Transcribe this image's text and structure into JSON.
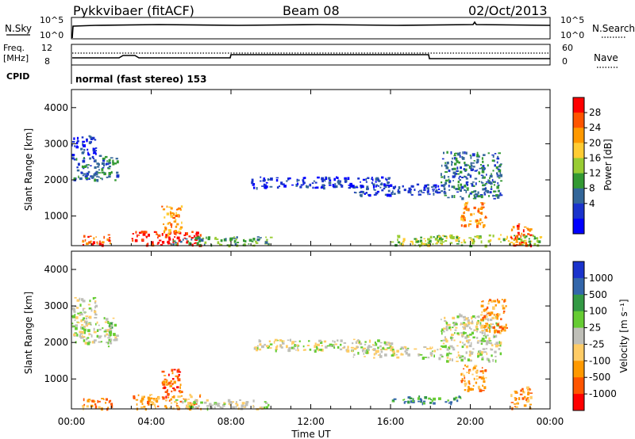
{
  "header": {
    "station": "Pykkvibaer (fitACF)",
    "beam": "Beam 08",
    "date": "02/Oct/2013"
  },
  "params_panel": {
    "nsky_label": "N.Sky",
    "nsearch_label": "N.Search",
    "nsky_ticks": [
      "10^5",
      "10^0"
    ],
    "nsearch_ticks": [
      "10^5",
      "10^0"
    ],
    "freq_label_line1": "Freq.",
    "freq_label_line2": "[MHz]",
    "freq_ticks": [
      "12",
      "8"
    ],
    "nave_label": "Nave",
    "nave_ticks": [
      "60",
      "0"
    ],
    "cpid_label": "CPID",
    "cpid_text": "normal (fast stereo) 153"
  },
  "chart_data": [
    {
      "type": "heatmap",
      "name": "power",
      "ylabel": "Slant Range [km]",
      "ylim": [
        180,
        4500
      ],
      "yticks": [
        1000,
        2000,
        3000,
        4000
      ],
      "colorbar_label": "Power [dB]",
      "colorbar_ticks": [
        "28",
        "24",
        "20",
        "16",
        "12",
        "8",
        "4"
      ],
      "colorbar_colors": [
        "#ff0000",
        "#ff5500",
        "#ff9900",
        "#ffcc33",
        "#99cc33",
        "#339933",
        "#336699",
        "#1a33cc",
        "#0000ff"
      ],
      "echo_regions": [
        {
          "t0": 0.0,
          "t1": 2.3,
          "r0": 2000,
          "r1": 2700,
          "level": 6
        },
        {
          "t0": 0.0,
          "t1": 1.2,
          "r0": 2700,
          "r1": 3250,
          "level": 7
        },
        {
          "t0": 0.5,
          "t1": 2.0,
          "r0": 200,
          "r1": 500,
          "level": 1
        },
        {
          "t0": 3.0,
          "t1": 6.5,
          "r0": 200,
          "r1": 600,
          "level": 0
        },
        {
          "t0": 4.5,
          "t1": 5.5,
          "r0": 500,
          "r1": 1300,
          "level": 2
        },
        {
          "t0": 5.0,
          "t1": 10.0,
          "r0": 200,
          "r1": 450,
          "level": 5
        },
        {
          "t0": 9.0,
          "t1": 16.0,
          "r0": 1800,
          "r1": 2100,
          "level": 7
        },
        {
          "t0": 14.0,
          "t1": 18.5,
          "r0": 1600,
          "r1": 1900,
          "level": 7
        },
        {
          "t0": 16.0,
          "t1": 23.5,
          "r0": 200,
          "r1": 500,
          "level": 4
        },
        {
          "t0": 18.5,
          "t1": 21.5,
          "r0": 1500,
          "r1": 2800,
          "level": 6
        },
        {
          "t0": 19.5,
          "t1": 20.8,
          "r0": 700,
          "r1": 1400,
          "level": 2
        },
        {
          "t0": 22.0,
          "t1": 23.0,
          "r0": 200,
          "r1": 800,
          "level": 1
        }
      ]
    },
    {
      "type": "heatmap",
      "name": "velocity",
      "xlabel": "Time UT",
      "ylabel": "Slant Range [km]",
      "ylim": [
        180,
        4500
      ],
      "yticks": [
        1000,
        2000,
        3000,
        4000
      ],
      "xlim": [
        0,
        24
      ],
      "xticks": [
        "00:00",
        "04:00",
        "08:00",
        "12:00",
        "16:00",
        "20:00",
        "00:00"
      ],
      "colorbar_label": "Velocity [m s⁻¹]",
      "colorbar_ticks": [
        "1000",
        "500",
        "100",
        "25",
        "-25",
        "-100",
        "-500",
        "-1000"
      ],
      "colorbar_colors": [
        "#1a33cc",
        "#3366aa",
        "#339944",
        "#66cc33",
        "#bfbfb8",
        "#ffcc66",
        "#ff9900",
        "#ff5500",
        "#ff0000"
      ],
      "echo_regions": [
        {
          "t0": 0.0,
          "t1": 2.3,
          "r0": 2000,
          "r1": 2700,
          "level": 4
        },
        {
          "t0": 0.0,
          "t1": 1.2,
          "r0": 2700,
          "r1": 3250,
          "level": 4
        },
        {
          "t0": 1.8,
          "t1": 2.0,
          "r0": 1900,
          "r1": 2600,
          "level": 3
        },
        {
          "t0": 0.5,
          "t1": 2.0,
          "r0": 200,
          "r1": 500,
          "level": 6
        },
        {
          "t0": 3.0,
          "t1": 6.5,
          "r0": 200,
          "r1": 600,
          "level": 6
        },
        {
          "t0": 4.5,
          "t1": 5.5,
          "r0": 500,
          "r1": 1300,
          "level": 7
        },
        {
          "t0": 5.0,
          "t1": 10.0,
          "r0": 200,
          "r1": 450,
          "level": 4
        },
        {
          "t0": 9.0,
          "t1": 16.0,
          "r0": 1800,
          "r1": 2100,
          "level": 4
        },
        {
          "t0": 14.0,
          "t1": 18.5,
          "r0": 1600,
          "r1": 1900,
          "level": 4
        },
        {
          "t0": 16.0,
          "t1": 19.5,
          "r0": 350,
          "r1": 550,
          "level": 2
        },
        {
          "t0": 18.5,
          "t1": 21.5,
          "r0": 1500,
          "r1": 2800,
          "level": 4
        },
        {
          "t0": 20.5,
          "t1": 21.8,
          "r0": 2300,
          "r1": 3200,
          "level": 6
        },
        {
          "t0": 19.5,
          "t1": 20.8,
          "r0": 700,
          "r1": 1400,
          "level": 6
        },
        {
          "t0": 22.0,
          "t1": 23.0,
          "r0": 200,
          "r1": 800,
          "level": 6
        }
      ]
    }
  ]
}
